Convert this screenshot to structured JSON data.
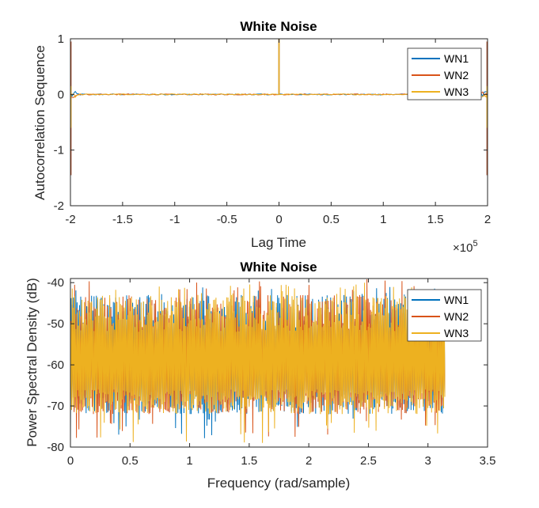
{
  "chart_data": [
    {
      "type": "line",
      "title": "White Noise",
      "xlabel": "Lag Time",
      "ylabel": "Autocorrelation Sequence",
      "x_exponent_label": "×10",
      "x_exponent_power": "5",
      "xlim": [
        -200000,
        200000
      ],
      "ylim": [
        -2,
        1
      ],
      "xticks": [
        -200000,
        -150000,
        -100000,
        -50000,
        0,
        50000,
        100000,
        150000,
        200000
      ],
      "xtick_labels": [
        "-2",
        "-1.5",
        "-1",
        "-0.5",
        "0",
        "0.5",
        "1",
        "1.5",
        "2"
      ],
      "yticks": [
        -2,
        -1,
        0,
        1
      ],
      "ytick_labels": [
        "-2",
        "-1",
        "0",
        "1"
      ],
      "grid": false,
      "legend_position": "top-right",
      "series": [
        {
          "name": "WN1",
          "color": "#0072BD",
          "peak_at_zero": 1.0,
          "edge_spike_min": -1.45,
          "edge_spike_max": 0.95,
          "noise_floor": 0.01
        },
        {
          "name": "WN2",
          "color": "#D95319",
          "peak_at_zero": 1.0,
          "edge_spike_min": -1.45,
          "edge_spike_max": 0.95,
          "noise_floor": 0.01
        },
        {
          "name": "WN3",
          "color": "#EDB120",
          "peak_at_zero": 1.0,
          "edge_spike_min": -0.6,
          "edge_spike_max": 0.15,
          "noise_floor": 0.01
        }
      ]
    },
    {
      "type": "line",
      "title": "White Noise",
      "xlabel": "Frequency (rad/sample)",
      "ylabel": "Power Spectral Density (dB)",
      "xlim": [
        0,
        3.5
      ],
      "ylim": [
        -80,
        -39
      ],
      "xticks": [
        0,
        0.5,
        1,
        1.5,
        2,
        2.5,
        3,
        3.5
      ],
      "xtick_labels": [
        "0",
        "0.5",
        "1",
        "1.5",
        "2",
        "2.5",
        "3",
        "3.5"
      ],
      "yticks": [
        -80,
        -70,
        -60,
        -50,
        -40
      ],
      "ytick_labels": [
        "-80",
        "-70",
        "-60",
        "-50",
        "-40"
      ],
      "grid": false,
      "legend_position": "top-right",
      "x_max_data": 3.1416,
      "series": [
        {
          "name": "WN1",
          "color": "#0072BD",
          "mean": -60,
          "band_low": -70,
          "band_high": -45,
          "min": -78,
          "max": -41
        },
        {
          "name": "WN2",
          "color": "#D95319",
          "mean": -60,
          "band_low": -70,
          "band_high": -45,
          "min": -78,
          "max": -39
        },
        {
          "name": "WN3",
          "color": "#EDB120",
          "mean": -60,
          "band_low": -70,
          "band_high": -45,
          "min": -79,
          "max": -40
        }
      ]
    }
  ]
}
